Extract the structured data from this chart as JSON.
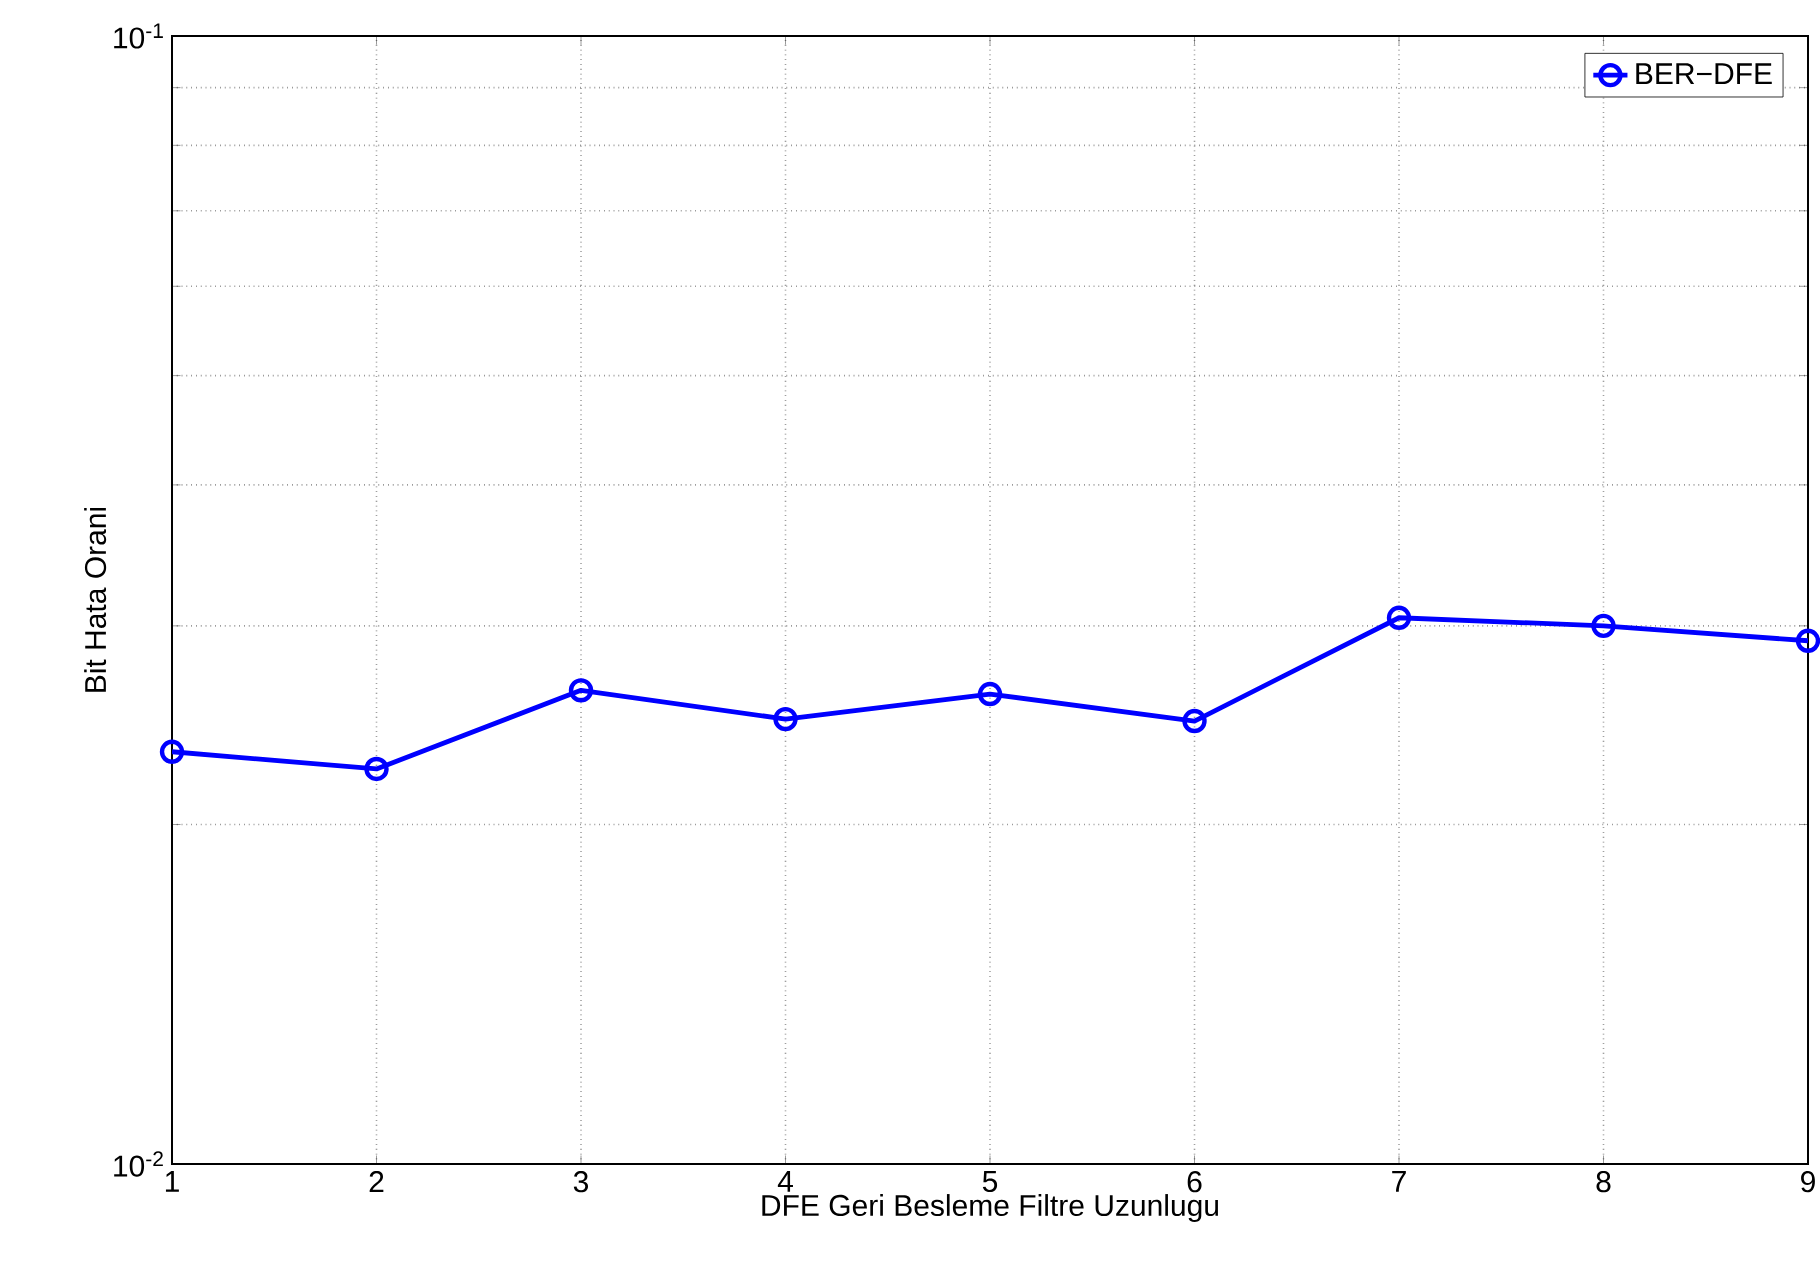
{
  "chart_data": {
    "type": "line",
    "xlabel": "DFE Geri Besleme Filtre Uzunlugu",
    "ylabel": "Bit Hata Orani",
    "x": [
      1,
      2,
      3,
      4,
      5,
      6,
      7,
      8,
      9
    ],
    "series": [
      {
        "name": "BER−DFE",
        "color": "#0000ff",
        "values": [
          0.0232,
          0.0224,
          0.0263,
          0.0248,
          0.0261,
          0.0247,
          0.0305,
          0.03,
          0.0291
        ]
      }
    ],
    "xlim": [
      1,
      9
    ],
    "xticks": [
      1,
      2,
      3,
      4,
      5,
      6,
      7,
      8,
      9
    ],
    "ylim": [
      0.01,
      0.1
    ],
    "yticks": [
      {
        "value": 0.01,
        "label": "10$^{-2}$"
      },
      {
        "value": 0.02,
        "label": null
      },
      {
        "value": 0.03,
        "label": null
      },
      {
        "value": 0.04,
        "label": null
      },
      {
        "value": 0.05,
        "label": null
      },
      {
        "value": 0.06,
        "label": null
      },
      {
        "value": 0.07,
        "label": null
      },
      {
        "value": 0.08,
        "label": null
      },
      {
        "value": 0.09,
        "label": null
      },
      {
        "value": 0.1,
        "label": "10$^{-1}$"
      }
    ],
    "log": "y",
    "grid": true,
    "legend": "top right",
    "marker": "circle",
    "line_style": "solid"
  }
}
